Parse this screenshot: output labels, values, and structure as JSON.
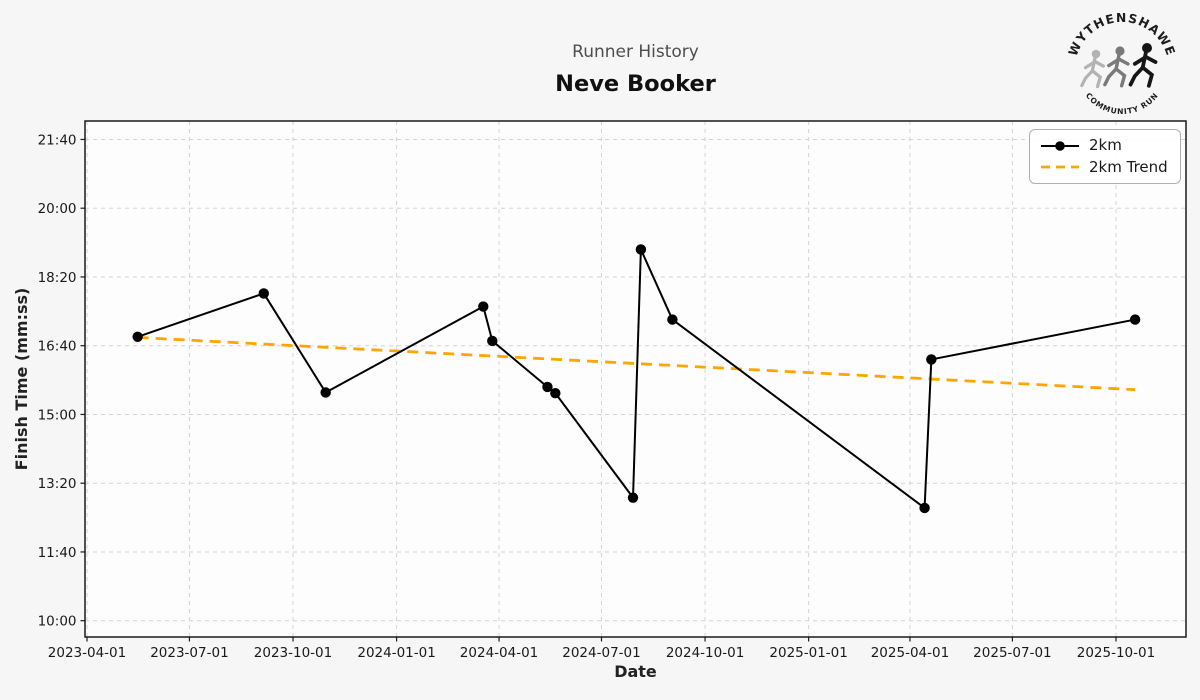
{
  "header": {
    "title": "Runner History",
    "runner_name": "Neve Booker"
  },
  "logo": {
    "top_text": "WYTHENSHAWE",
    "bottom_text": "COMMUNITY RUN"
  },
  "legend": {
    "items": [
      {
        "label": "2km",
        "color": "#000000",
        "style": "solid-line-with-marker"
      },
      {
        "label": "2km Trend",
        "color": "#FFA500",
        "style": "dashed-line"
      }
    ]
  },
  "axes": {
    "xlabel": "Date",
    "ylabel": "Finish Time (mm:ss)"
  },
  "colors": {
    "figure_background": "#f6f6f6",
    "plot_background": "#fdfdfd",
    "grid": "#d4d4d4",
    "spine": "#1a1a1a",
    "tick_text": "#1a1a1a",
    "subtitle_text": "#4d4d4d",
    "series": "#000000",
    "trend": "#FFA500"
  },
  "chart_data": {
    "type": "line",
    "title": "Runner History",
    "subtitle": "Neve Booker",
    "xlabel": "Date",
    "ylabel": "Finish Time (mm:ss)",
    "grid": true,
    "legend_position": "upper-right",
    "x_tick_labels": [
      "2023-04-01",
      "2023-07-01",
      "2023-10-01",
      "2024-01-01",
      "2024-04-01",
      "2024-07-01",
      "2024-10-01",
      "2025-01-01",
      "2025-04-01",
      "2025-07-01",
      "2025-10-01"
    ],
    "y_tick_labels": [
      "10:00",
      "11:40",
      "13:20",
      "15:00",
      "16:40",
      "18:20",
      "20:00",
      "21:40"
    ],
    "y_axis_range_mmss": [
      "09:30",
      "22:09"
    ],
    "x_axis_range": [
      "2023-03-30",
      "2025-12-02"
    ],
    "series": [
      {
        "name": "2km",
        "color": "#000000",
        "marker": "circle",
        "line_style": "solid",
        "points": [
          {
            "date": "2023-05-16",
            "time": "16:53"
          },
          {
            "date": "2023-09-05",
            "time": "17:56"
          },
          {
            "date": "2023-10-30",
            "time": "15:32"
          },
          {
            "date": "2024-03-18",
            "time": "17:37"
          },
          {
            "date": "2024-03-26",
            "time": "16:47"
          },
          {
            "date": "2024-05-14",
            "time": "15:40"
          },
          {
            "date": "2024-05-21",
            "time": "15:31"
          },
          {
            "date": "2024-07-29",
            "time": "12:59"
          },
          {
            "date": "2024-08-05",
            "time": "19:00"
          },
          {
            "date": "2024-09-02",
            "time": "17:18"
          },
          {
            "date": "2025-04-14",
            "time": "12:44"
          },
          {
            "date": "2025-04-20",
            "time": "16:20"
          },
          {
            "date": "2025-10-18",
            "time": "17:18"
          }
        ]
      },
      {
        "name": "2km Trend",
        "color": "#FFA500",
        "marker": "none",
        "line_style": "dashed",
        "points": [
          {
            "date": "2023-05-16",
            "time": "16:52"
          },
          {
            "date": "2025-10-18",
            "time": "15:36"
          }
        ]
      }
    ]
  }
}
